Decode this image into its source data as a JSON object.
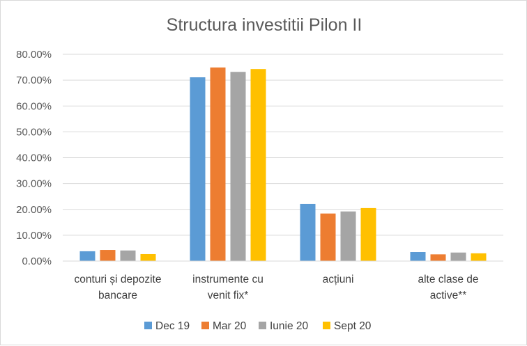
{
  "chart_data": {
    "type": "bar",
    "title": "Structura investitii Pilon II",
    "xlabel": "",
    "ylabel": "",
    "ylim": [
      0,
      0.8
    ],
    "yticks": [
      "0.00%",
      "10.00%",
      "20.00%",
      "30.00%",
      "40.00%",
      "50.00%",
      "60.00%",
      "70.00%",
      "80.00%"
    ],
    "grid": true,
    "legend_position": "bottom",
    "categories": [
      [
        "conturi și depozite",
        "bancare"
      ],
      [
        "instrumente cu",
        "venit fix*"
      ],
      [
        "acțiuni"
      ],
      [
        "alte clase de",
        "active**"
      ]
    ],
    "series": [
      {
        "name": "Dec 19",
        "color": "#5b9bd5",
        "values": [
          0.038,
          0.711,
          0.221,
          0.035
        ]
      },
      {
        "name": "Mar 20",
        "color": "#ed7d31",
        "values": [
          0.043,
          0.749,
          0.184,
          0.026
        ]
      },
      {
        "name": "Iunie 20",
        "color": "#a5a5a5",
        "values": [
          0.041,
          0.732,
          0.192,
          0.033
        ]
      },
      {
        "name": "Sept 20",
        "color": "#ffc000",
        "values": [
          0.027,
          0.743,
          0.205,
          0.03
        ]
      }
    ]
  }
}
